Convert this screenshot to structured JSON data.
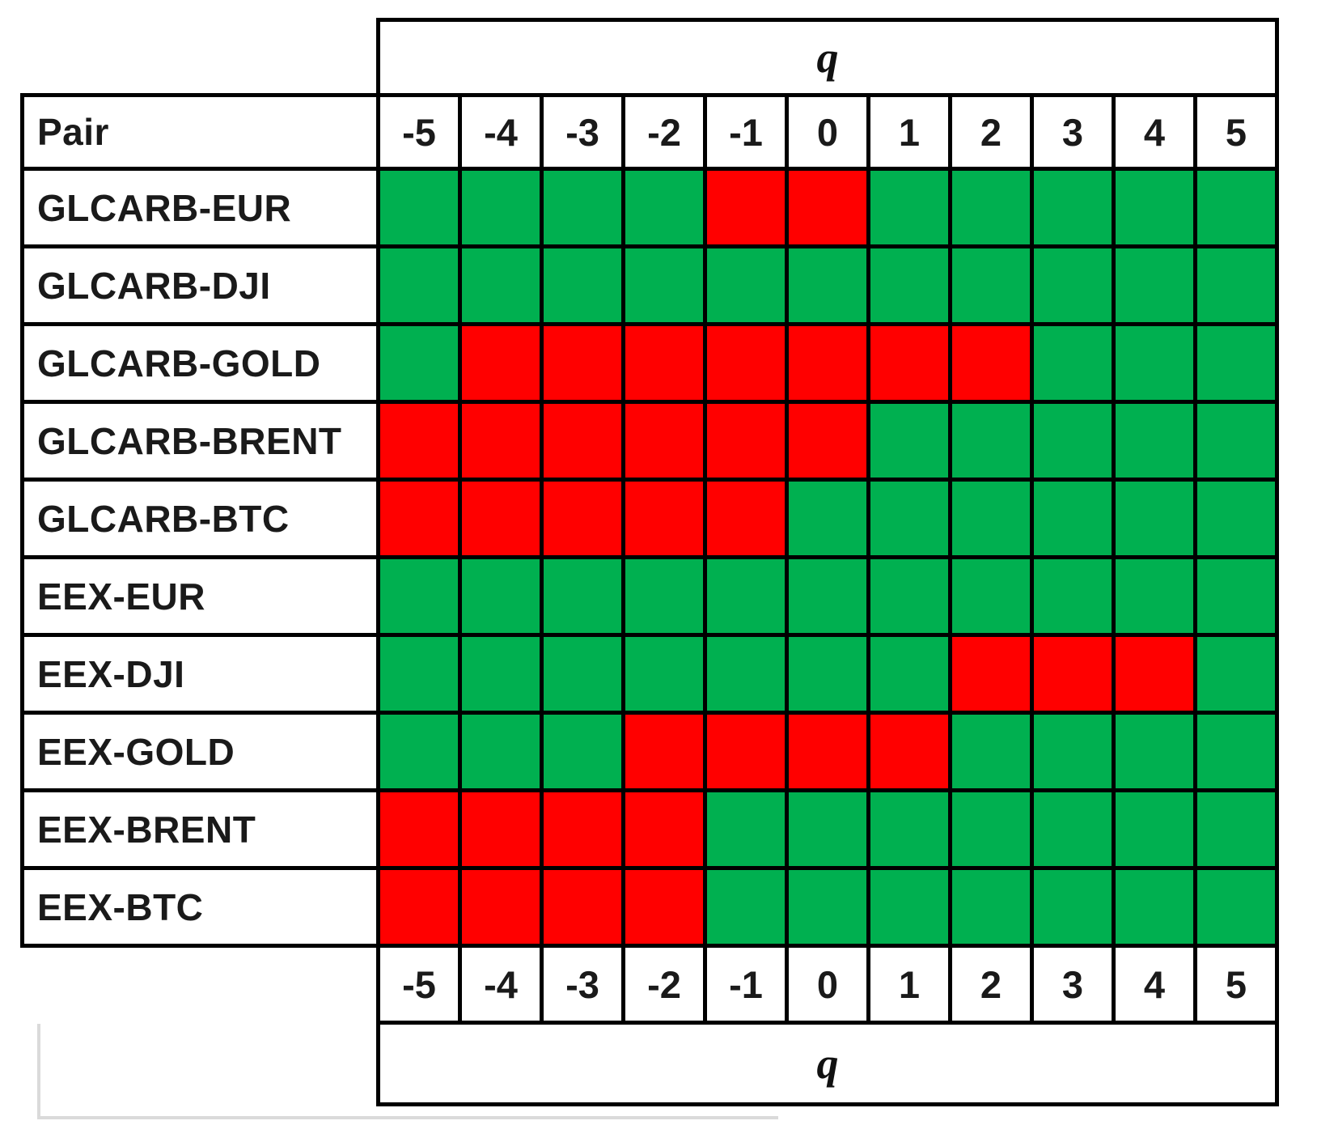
{
  "chart_data": {
    "type": "heatmap",
    "row_header": "Pair",
    "xlabel": "q",
    "x": [
      "-5",
      "-4",
      "-3",
      "-2",
      "-1",
      "0",
      "1",
      "2",
      "3",
      "4",
      "5"
    ],
    "top_axis_label": "q",
    "bottom_axis_label": "q",
    "cell_colors": {
      "green": "#00B050",
      "red": "#FF0000"
    },
    "grid_color": "#000000",
    "legend_position": "none",
    "rows": [
      {
        "pair": "GLCARB-EUR",
        "cells": [
          "green",
          "green",
          "green",
          "green",
          "red",
          "red",
          "green",
          "green",
          "green",
          "green",
          "green"
        ]
      },
      {
        "pair": "GLCARB-DJI",
        "cells": [
          "green",
          "green",
          "green",
          "green",
          "green",
          "green",
          "green",
          "green",
          "green",
          "green",
          "green"
        ]
      },
      {
        "pair": "GLCARB-GOLD",
        "cells": [
          "green",
          "red",
          "red",
          "red",
          "red",
          "red",
          "red",
          "red",
          "green",
          "green",
          "green"
        ]
      },
      {
        "pair": "GLCARB-BRENT",
        "cells": [
          "red",
          "red",
          "red",
          "red",
          "red",
          "red",
          "green",
          "green",
          "green",
          "green",
          "green"
        ]
      },
      {
        "pair": "GLCARB-BTC",
        "cells": [
          "red",
          "red",
          "red",
          "red",
          "red",
          "green",
          "green",
          "green",
          "green",
          "green",
          "green"
        ]
      },
      {
        "pair": "EEX-EUR",
        "cells": [
          "green",
          "green",
          "green",
          "green",
          "green",
          "green",
          "green",
          "green",
          "green",
          "green",
          "green"
        ]
      },
      {
        "pair": "EEX-DJI",
        "cells": [
          "green",
          "green",
          "green",
          "green",
          "green",
          "green",
          "green",
          "red",
          "red",
          "red",
          "green"
        ]
      },
      {
        "pair": "EEX-GOLD",
        "cells": [
          "green",
          "green",
          "green",
          "red",
          "red",
          "red",
          "red",
          "green",
          "green",
          "green",
          "green"
        ]
      },
      {
        "pair": "EEX-BRENT",
        "cells": [
          "red",
          "red",
          "red",
          "red",
          "green",
          "green",
          "green",
          "green",
          "green",
          "green",
          "green"
        ]
      },
      {
        "pair": "EEX-BTC",
        "cells": [
          "red",
          "red",
          "red",
          "red",
          "green",
          "green",
          "green",
          "green",
          "green",
          "green",
          "green"
        ]
      }
    ]
  }
}
